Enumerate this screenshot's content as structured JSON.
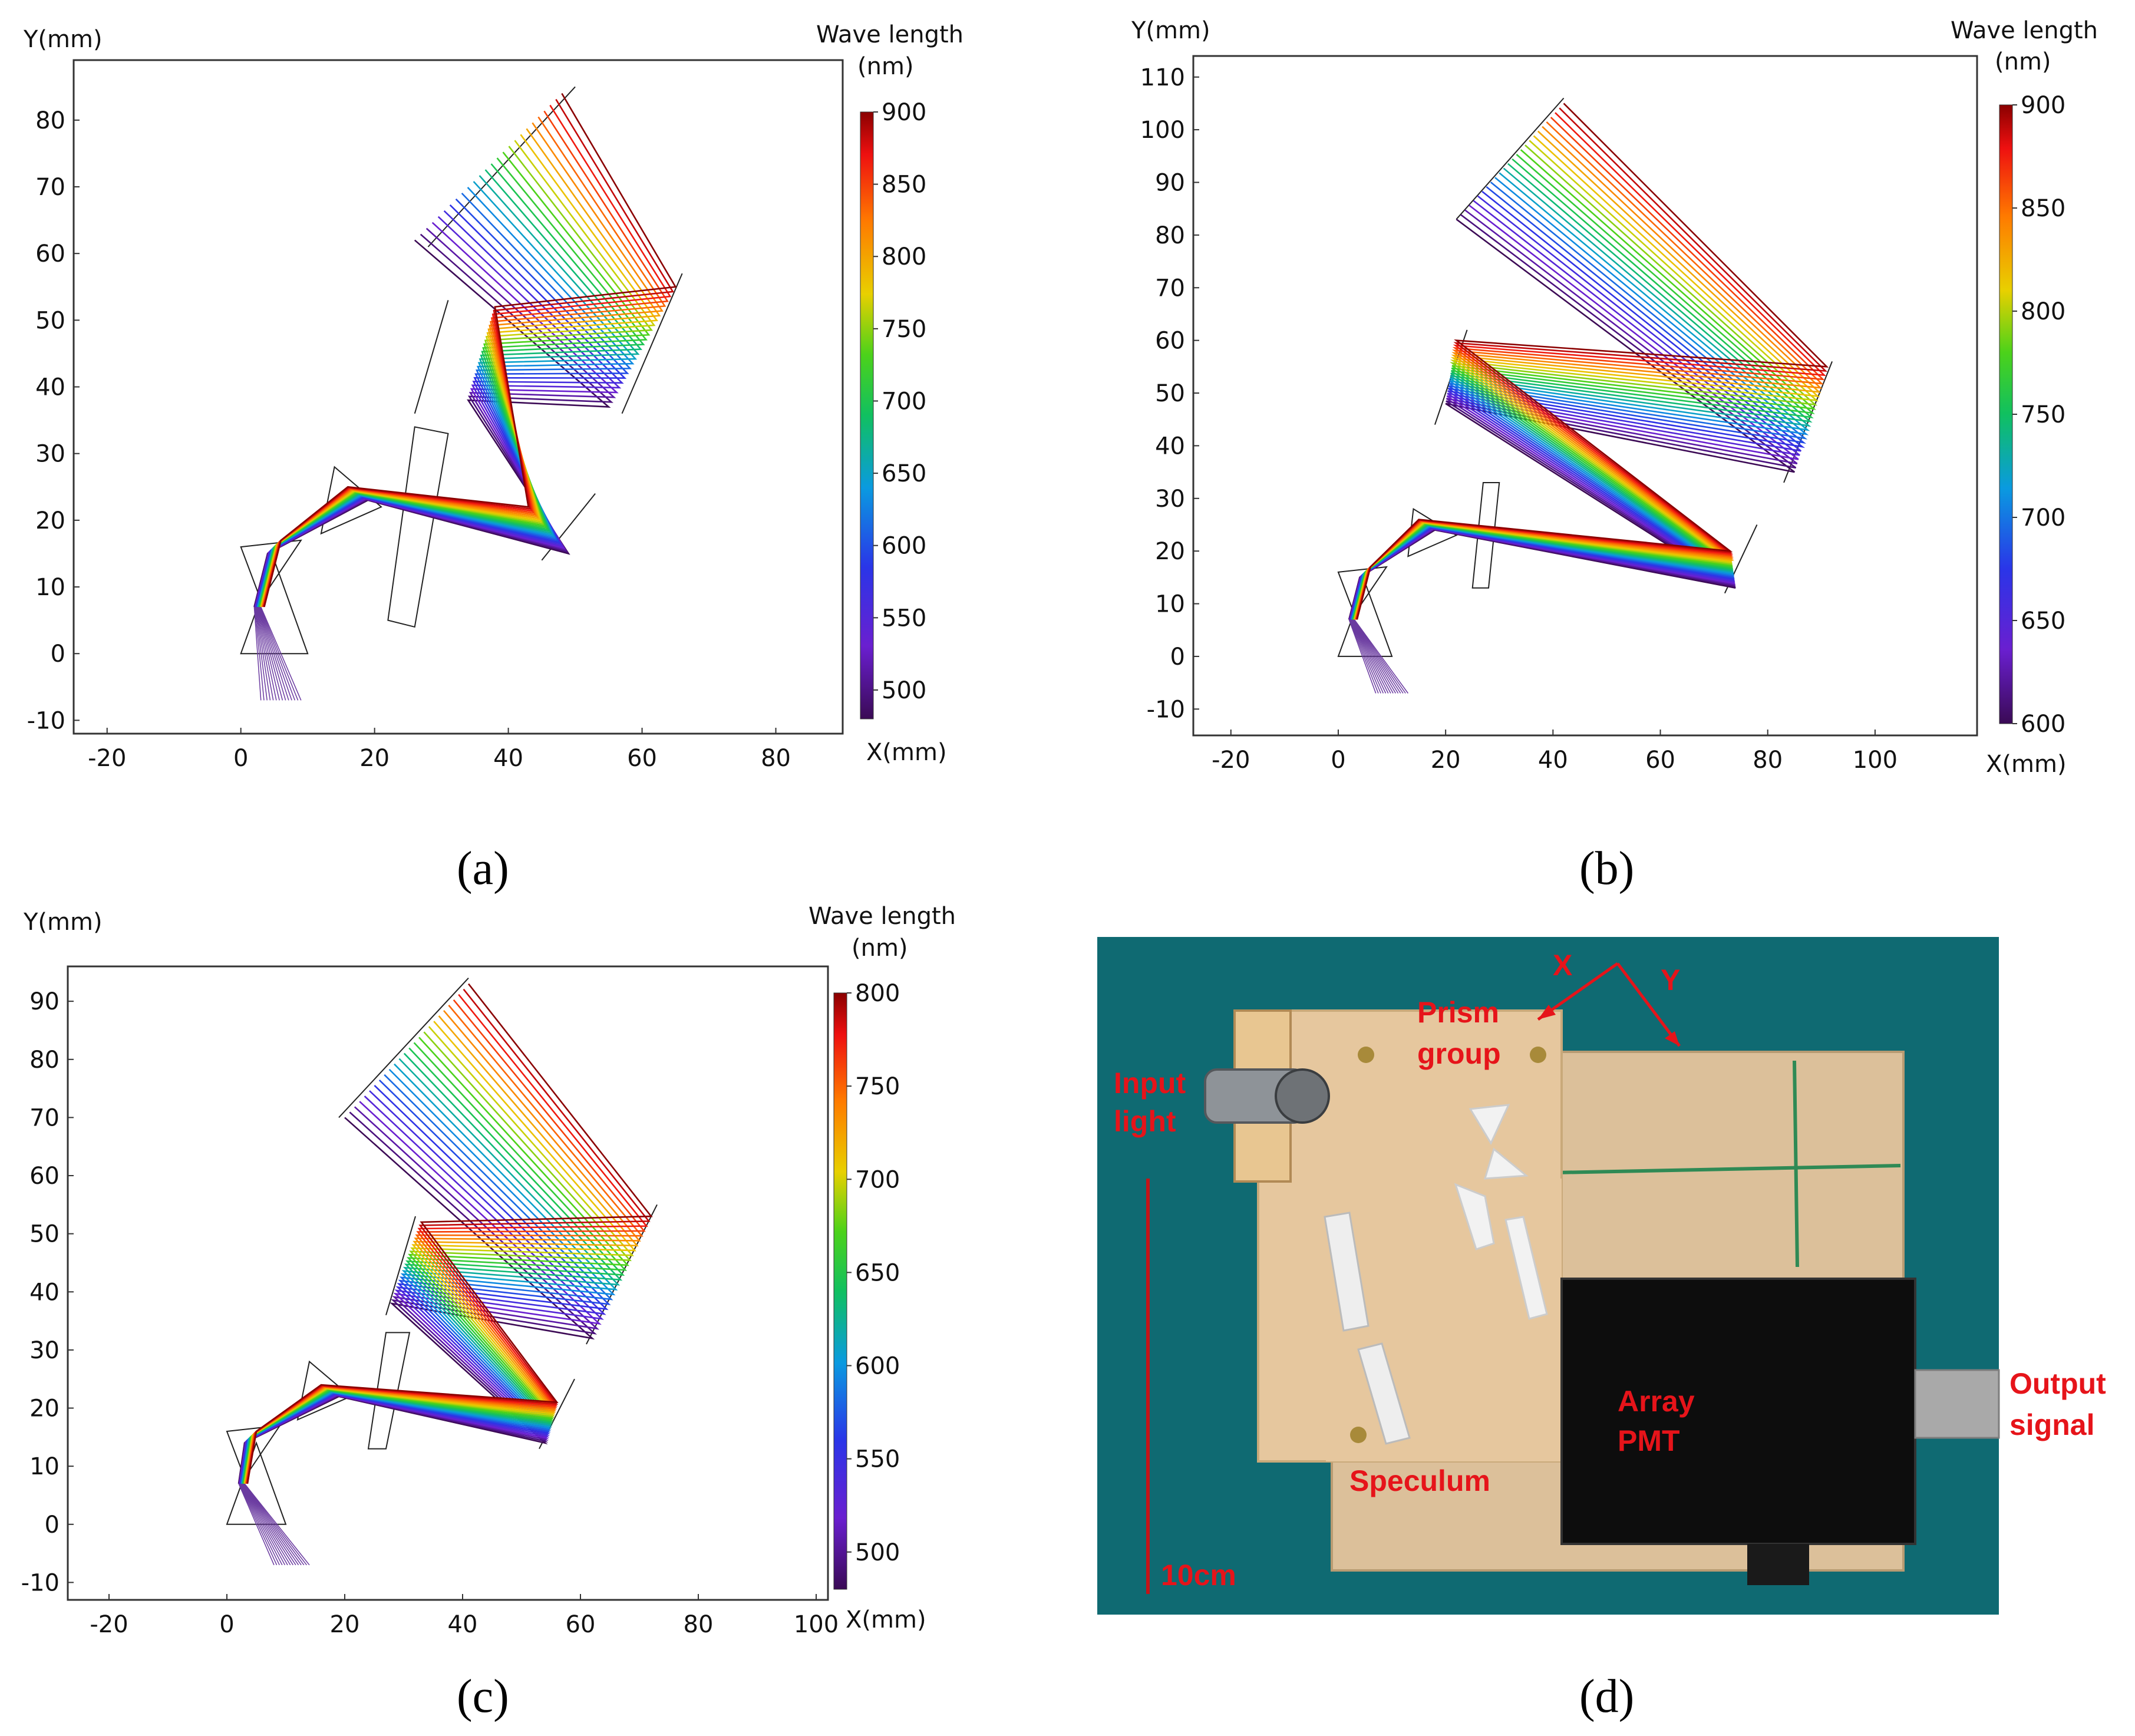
{
  "chart_data": [
    {
      "type": "ray-trace",
      "panel_label": "(a)",
      "xlabel": "X(mm)",
      "ylabel": "Y(mm)",
      "xlim": [
        -25,
        90
      ],
      "ylim": [
        -12,
        89
      ],
      "xticks": [
        -20,
        0,
        20,
        40,
        60,
        80
      ],
      "yticks": [
        -10,
        0,
        10,
        20,
        30,
        40,
        50,
        60,
        70,
        80
      ],
      "colorbar_title": [
        "Wave length",
        "(nm)"
      ],
      "colorbar_range": [
        480,
        900
      ],
      "colorbar_ticks": [
        500,
        550,
        600,
        650,
        700,
        750,
        800,
        850,
        900
      ]
    },
    {
      "type": "ray-trace",
      "panel_label": "(b)",
      "xlabel": "X(mm)",
      "ylabel": "Y(mm)",
      "xlim": [
        -27,
        119
      ],
      "ylim": [
        -15,
        114
      ],
      "xticks": [
        -20,
        0,
        20,
        40,
        60,
        80,
        100
      ],
      "yticks": [
        -10,
        0,
        10,
        20,
        30,
        40,
        50,
        60,
        70,
        80,
        90,
        100,
        110
      ],
      "colorbar_title": [
        "Wave length",
        "(nm)"
      ],
      "colorbar_range": [
        600,
        900
      ],
      "colorbar_ticks": [
        600,
        650,
        700,
        750,
        800,
        850,
        900
      ]
    },
    {
      "type": "ray-trace",
      "panel_label": "(c)",
      "xlabel": "X(mm)",
      "ylabel": "Y(mm)",
      "xlim": [
        -27,
        102
      ],
      "ylim": [
        -13,
        96
      ],
      "xticks": [
        -20,
        0,
        20,
        40,
        60,
        80,
        100
      ],
      "yticks": [
        -10,
        0,
        10,
        20,
        30,
        40,
        50,
        60,
        70,
        80,
        90
      ],
      "colorbar_title": [
        "Wave length",
        "(nm)"
      ],
      "colorbar_range": [
        480,
        800
      ],
      "colorbar_ticks": [
        500,
        550,
        600,
        650,
        700,
        750,
        800
      ]
    }
  ],
  "photo": {
    "panel_label": "(d)",
    "labels": {
      "x_axis": "X",
      "y_axis": "Y",
      "prism_line1": "Prism",
      "prism_line2": "group",
      "input_line1": "Input",
      "input_line2": "light",
      "array_line1": "Array",
      "array_line2": "PMT",
      "output_line1": "Output",
      "output_line2": "signal",
      "speculum": "Speculum",
      "scale": "10cm"
    },
    "colors": {
      "background": "#0f6a72",
      "board": "#e6c79e",
      "acrylic": "#dcc09a",
      "pmt_box": "#0d0d0d",
      "label": "#e6141a"
    }
  }
}
